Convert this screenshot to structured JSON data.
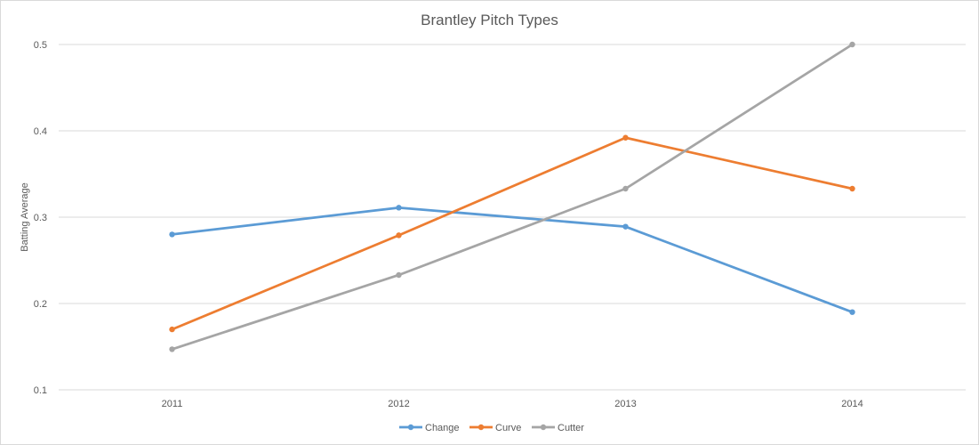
{
  "chart_data": {
    "type": "line",
    "title": "Brantley Pitch Types",
    "xlabel": "",
    "ylabel": "Batting Average",
    "categories": [
      "2011",
      "2012",
      "2013",
      "2014"
    ],
    "ylim": [
      0.1,
      0.5
    ],
    "yticks": [
      "0.1",
      "0.2",
      "0.3",
      "0.4",
      "0.5"
    ],
    "grid": true,
    "legend": "bottom",
    "series": [
      {
        "name": "Change",
        "color": "#5B9BD5",
        "values": [
          0.28,
          0.311,
          0.289,
          0.19
        ]
      },
      {
        "name": "Curve",
        "color": "#ED7D31",
        "values": [
          0.17,
          0.279,
          0.392,
          0.333
        ]
      },
      {
        "name": "Cutter",
        "color": "#A5A5A5",
        "values": [
          0.147,
          0.233,
          0.333,
          0.5
        ]
      }
    ]
  }
}
